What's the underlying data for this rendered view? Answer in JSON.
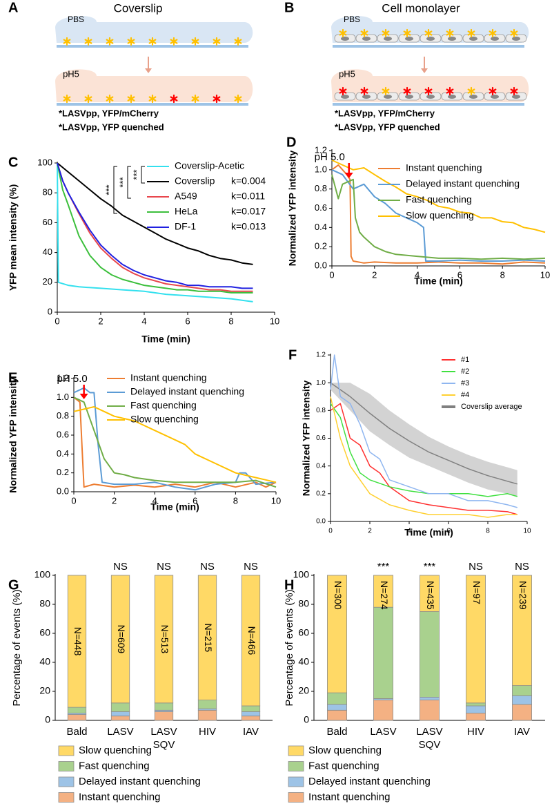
{
  "panel_a": {
    "label": "A",
    "title": "Coverslip",
    "buffer_top": "PBS",
    "buffer_bottom": "pH5",
    "legend": [
      "*LASVpp, YFP/mCherry",
      "*LASVpp, YFP quenched"
    ]
  },
  "panel_b": {
    "label": "B",
    "title": "Cell monolayer",
    "buffer_top": "PBS",
    "buffer_bottom": "pH5",
    "legend": [
      "*LASVpp, YFP/mCherry",
      "*LASVpp, YFP quenched"
    ]
  },
  "chart_data": [
    {
      "type": "line",
      "panel_label": "C",
      "xlabel": "Time (min)",
      "ylabel": "YFP mean intensity (%)",
      "xlim": [
        0,
        10
      ],
      "xticks": [
        0,
        2,
        4,
        6,
        8,
        10
      ],
      "ylim": [
        0,
        100
      ],
      "yticks": [
        0,
        20,
        40,
        60,
        80,
        100
      ],
      "significance": [
        "***",
        "***",
        "***"
      ],
      "series": [
        {
          "name": "Coverslip-Acetic",
          "color": "#33e0ee",
          "x": [
            0,
            0.05,
            0.5,
            1,
            2,
            3,
            4,
            5,
            6,
            7,
            8,
            9
          ],
          "values": [
            100,
            20,
            18,
            17,
            16,
            15,
            14,
            12,
            11,
            10,
            9,
            7
          ]
        },
        {
          "name": "Coverslip",
          "annotation": "k=0.004",
          "color": "#000000",
          "x": [
            0,
            0.25,
            0.5,
            1,
            1.5,
            2,
            2.5,
            3,
            3.5,
            4,
            4.5,
            5,
            5.5,
            6,
            6.5,
            7,
            7.5,
            8,
            8.5,
            9
          ],
          "values": [
            100,
            97,
            94,
            88,
            82,
            76,
            71,
            65,
            61,
            57,
            53,
            49,
            46,
            43,
            41,
            38,
            36,
            35,
            33,
            32
          ]
        },
        {
          "name": "A549",
          "annotation": "k=0.011",
          "color": "#e8474d",
          "x": [
            0,
            0.25,
            0.5,
            1,
            1.5,
            2,
            2.5,
            3,
            3.5,
            4,
            4.5,
            5,
            5.5,
            6,
            6.5,
            7,
            7.5,
            8,
            8.5,
            9
          ],
          "values": [
            100,
            88,
            80,
            66,
            53,
            43,
            36,
            30,
            26,
            23,
            21,
            19,
            18,
            17,
            16,
            15,
            15,
            14,
            14,
            14
          ]
        },
        {
          "name": "HeLa",
          "annotation": "k=0.017",
          "color": "#3cbf3c",
          "x": [
            0,
            0.25,
            0.5,
            1,
            1.5,
            2,
            2.5,
            3,
            3.5,
            4,
            4.5,
            5,
            5.5,
            6,
            6.5,
            7,
            7.5,
            8,
            8.5,
            9
          ],
          "values": [
            100,
            82,
            72,
            51,
            38,
            30,
            25,
            22,
            20,
            18,
            17,
            16,
            15,
            15,
            14,
            14,
            14,
            13,
            13,
            13
          ]
        },
        {
          "name": "DF-1",
          "annotation": "k=0.013",
          "color": "#2020e0",
          "x": [
            0,
            0.25,
            0.5,
            1,
            1.5,
            2,
            2.5,
            3,
            3.5,
            4,
            4.5,
            5,
            5.5,
            6,
            6.5,
            7,
            7.5,
            8,
            8.5,
            9
          ],
          "values": [
            100,
            88,
            80,
            67,
            55,
            45,
            38,
            32,
            28,
            25,
            23,
            21,
            20,
            18,
            18,
            17,
            17,
            17,
            16,
            16
          ]
        }
      ]
    },
    {
      "type": "line",
      "panel_label": "D",
      "xlabel": "Time (min)",
      "ylabel": "Normalized YFP intensity",
      "annotation": "pH 5.0",
      "annotation_x": 0.8,
      "xlim": [
        0,
        10
      ],
      "xticks": [
        0,
        2,
        4,
        6,
        8,
        10
      ],
      "ylim": [
        0,
        1.2
      ],
      "yticks": [
        {
          "value": 0,
          "label": "0.0"
        },
        0.2,
        0.4,
        0.6,
        0.8,
        {
          "value": 1,
          "label": "1.0"
        },
        1.2
      ],
      "series": [
        {
          "name": "Instant quenching",
          "color": "#ed7d31",
          "x": [
            0,
            0.3,
            0.5,
            0.7,
            0.85,
            0.9,
            1,
            1.5,
            2,
            3,
            4,
            5,
            6,
            7,
            8,
            9,
            10
          ],
          "values": [
            1.0,
            1.05,
            1.0,
            0.95,
            0.9,
            0.1,
            0.05,
            0.03,
            0.04,
            0.03,
            0.03,
            0.04,
            0.03,
            0.03,
            0.02,
            0.04,
            0.03
          ]
        },
        {
          "name": "Delayed instant quenching",
          "color": "#5b9bd5",
          "x": [
            0,
            0.5,
            1,
            1.5,
            2,
            2.5,
            3,
            3.5,
            4,
            4.3,
            4.4,
            5,
            6,
            7,
            8,
            9,
            10
          ],
          "values": [
            1.0,
            0.95,
            0.8,
            0.85,
            0.72,
            0.65,
            0.55,
            0.5,
            0.45,
            0.4,
            0.05,
            0.05,
            0.06,
            0.05,
            0.05,
            0.06,
            0.05
          ]
        },
        {
          "name": "Fast quenching",
          "color": "#70ad47",
          "x": [
            0,
            0.3,
            0.5,
            1,
            1.1,
            1.3,
            1.5,
            2,
            2.5,
            3,
            4,
            5,
            6,
            7,
            8,
            9,
            10
          ],
          "values": [
            0.95,
            0.7,
            0.85,
            0.9,
            0.5,
            0.35,
            0.3,
            0.2,
            0.15,
            0.12,
            0.1,
            0.08,
            0.08,
            0.07,
            0.08,
            0.07,
            0.08
          ]
        },
        {
          "name": "Slow quenching",
          "color": "#ffc000",
          "x": [
            0,
            0.5,
            1,
            1.5,
            2,
            2.5,
            3,
            3.5,
            4,
            4.5,
            5,
            5.5,
            6,
            6.5,
            7,
            7.5,
            8,
            8.5,
            9,
            9.5,
            10
          ],
          "values": [
            1.1,
            1.05,
            1.0,
            1.02,
            0.95,
            0.88,
            0.82,
            0.75,
            0.72,
            0.68,
            0.62,
            0.6,
            0.56,
            0.55,
            0.5,
            0.5,
            0.46,
            0.45,
            0.4,
            0.38,
            0.35
          ]
        }
      ]
    },
    {
      "type": "line",
      "panel_label": "E",
      "xlabel": "Time (min)",
      "ylabel": "Normalized YFP intensity",
      "annotation": "pH 5.0",
      "annotation_x": 0.5,
      "xlim": [
        0,
        10
      ],
      "xticks": [
        0,
        2,
        4,
        6,
        8,
        10
      ],
      "ylim": [
        0,
        1.2
      ],
      "yticks": [
        {
          "value": 0,
          "label": "0.0"
        },
        0.2,
        0.4,
        0.6,
        0.8,
        {
          "value": 1,
          "label": "1.0"
        },
        1.2
      ],
      "series": [
        {
          "name": "Instant quenching",
          "color": "#ed7d31",
          "x": [
            0,
            0.3,
            0.4,
            0.5,
            1,
            2,
            3,
            4,
            5,
            6,
            7,
            8,
            9,
            9.5,
            10
          ],
          "values": [
            1.0,
            0.95,
            0.5,
            0.05,
            0.08,
            0.05,
            0.07,
            0.05,
            0.08,
            0.05,
            0.1,
            0.05,
            0.1,
            0.05,
            0.1
          ]
        },
        {
          "name": "Delayed instant quenching",
          "color": "#5b9bd5",
          "x": [
            0,
            0.5,
            0.8,
            1,
            1.2,
            1.4,
            2,
            3,
            4,
            5,
            6,
            7,
            8,
            8.2,
            8.5,
            9,
            10
          ],
          "values": [
            1.05,
            1.1,
            1.05,
            1.05,
            0.5,
            0.1,
            0.08,
            0.08,
            0.1,
            0.05,
            0.02,
            0.08,
            0.1,
            0.2,
            0.2,
            0.08,
            0.1
          ]
        },
        {
          "name": "Fast quenching",
          "color": "#70ad47",
          "x": [
            0,
            0.5,
            1,
            1.5,
            2,
            2.5,
            3,
            4,
            5,
            6,
            7,
            8,
            9,
            10
          ],
          "values": [
            1.0,
            0.95,
            0.65,
            0.35,
            0.2,
            0.18,
            0.15,
            0.12,
            0.1,
            0.1,
            0.1,
            0.1,
            0.12,
            0.05
          ]
        },
        {
          "name": "Slow quenching",
          "color": "#ffc000",
          "x": [
            0,
            1,
            1.5,
            2,
            3,
            4,
            5,
            5.5,
            6,
            7,
            8,
            9,
            10
          ],
          "values": [
            0.85,
            0.9,
            0.85,
            0.8,
            0.75,
            0.65,
            0.55,
            0.5,
            0.4,
            0.3,
            0.2,
            0.15,
            0.1
          ]
        }
      ]
    },
    {
      "type": "line",
      "panel_label": "F",
      "xlabel": "Time (min)",
      "ylabel": "Normalized YFP intensity",
      "xlim": [
        0,
        10
      ],
      "xticks": [
        0,
        2,
        4,
        6,
        8,
        10
      ],
      "ylim": [
        0,
        1.2
      ],
      "yticks": [
        {
          "value": 0,
          "label": "0.0"
        },
        0.2,
        0.4,
        0.6,
        0.8,
        {
          "value": 1,
          "label": "1.0"
        },
        1.2
      ],
      "series": [
        {
          "name": "#1",
          "color": "#ff3030",
          "x": [
            0,
            0.5,
            1,
            1.5,
            2,
            2.5,
            3,
            4,
            5,
            6,
            7,
            8,
            9,
            9.5
          ],
          "values": [
            0.8,
            0.85,
            0.6,
            0.55,
            0.4,
            0.35,
            0.25,
            0.15,
            0.12,
            0.1,
            0.08,
            0.08,
            0.07,
            0.05
          ]
        },
        {
          "name": "#2",
          "color": "#40e040",
          "x": [
            0,
            0.5,
            1,
            1.5,
            2,
            3,
            4,
            5,
            6,
            7,
            8,
            9,
            9.5
          ],
          "values": [
            0.85,
            0.75,
            0.5,
            0.35,
            0.3,
            0.25,
            0.22,
            0.2,
            0.2,
            0.2,
            0.18,
            0.2,
            0.18
          ]
        },
        {
          "name": "#3",
          "color": "#8fb6f0",
          "x": [
            0,
            0.2,
            0.5,
            1,
            1.5,
            2,
            2.5,
            3,
            4,
            5,
            6,
            7,
            8,
            9,
            9.5
          ],
          "values": [
            0.95,
            1.2,
            0.9,
            0.85,
            0.7,
            0.5,
            0.45,
            0.3,
            0.25,
            0.2,
            0.2,
            0.15,
            0.15,
            0.12,
            0.1
          ]
        },
        {
          "name": "#4",
          "color": "#ffd030",
          "x": [
            0,
            0.5,
            1,
            1.5,
            2,
            3,
            4,
            5,
            6,
            7,
            8,
            9,
            9.5
          ],
          "values": [
            0.9,
            0.6,
            0.4,
            0.3,
            0.2,
            0.12,
            0.08,
            0.05,
            0.05,
            0.05,
            0.03,
            0.05,
            0.05
          ]
        },
        {
          "name": "Coverslip average",
          "color": "#808080",
          "band_color": "#c8c8c8",
          "x": [
            0,
            1,
            2,
            3,
            4,
            5,
            6,
            7,
            8,
            9,
            9.5
          ],
          "values": [
            1.0,
            0.9,
            0.78,
            0.67,
            0.58,
            0.5,
            0.44,
            0.38,
            0.33,
            0.29,
            0.27
          ],
          "lower": [
            0.95,
            0.8,
            0.65,
            0.55,
            0.46,
            0.4,
            0.34,
            0.28,
            0.23,
            0.2,
            0.18
          ],
          "upper": [
            1.0,
            1.0,
            0.92,
            0.8,
            0.7,
            0.61,
            0.54,
            0.48,
            0.43,
            0.39,
            0.37
          ]
        }
      ]
    },
    {
      "type": "bar",
      "panel_label": "G",
      "ylabel": "Percentage of events (%)",
      "categories": [
        "Bald",
        "LASV",
        "LASV",
        "HIV",
        "IAV"
      ],
      "sublabels": [
        null,
        null,
        "SQV",
        null,
        null
      ],
      "significance": [
        null,
        "NS",
        "NS",
        "NS",
        "NS"
      ],
      "n_labels": [
        "N=448",
        "N=609",
        "N=513",
        "N=215",
        "N=466"
      ],
      "ylim": [
        0,
        100
      ],
      "yticks": [
        0,
        20,
        40,
        60,
        80,
        100
      ],
      "series": [
        {
          "name": "Instant quenching",
          "color": "#f4b183",
          "values": [
            4,
            3,
            6,
            7,
            3
          ]
        },
        {
          "name": "Delayed instant quenching",
          "color": "#9dc3e6",
          "values": [
            1,
            3,
            1,
            1,
            3
          ]
        },
        {
          "name": "Fast quenching",
          "color": "#a9d18e",
          "values": [
            4,
            6,
            5,
            6,
            4
          ]
        },
        {
          "name": "Slow quenching",
          "color": "#ffd966",
          "values": [
            91,
            88,
            88,
            86,
            90
          ]
        }
      ]
    },
    {
      "type": "bar",
      "panel_label": "H",
      "ylabel": "Percentage of events (%)",
      "categories": [
        "Bald",
        "LASV",
        "LASV",
        "HIV",
        "IAV"
      ],
      "sublabels": [
        null,
        null,
        "SQV",
        null,
        null
      ],
      "significance": [
        null,
        "***",
        "***",
        "NS",
        "NS"
      ],
      "n_labels": [
        "N=300",
        "N=274",
        "N=435",
        "N=97",
        "N=239"
      ],
      "ylim": [
        0,
        100
      ],
      "yticks": [
        0,
        20,
        40,
        60,
        80,
        100
      ],
      "series": [
        {
          "name": "Instant quenching",
          "color": "#f4b183",
          "values": [
            7,
            14,
            14,
            5,
            11
          ]
        },
        {
          "name": "Delayed instant quenching",
          "color": "#9dc3e6",
          "values": [
            4,
            1,
            2,
            5,
            6
          ]
        },
        {
          "name": "Fast quenching",
          "color": "#a9d18e",
          "values": [
            8,
            63,
            59,
            2,
            7
          ]
        },
        {
          "name": "Slow quenching",
          "color": "#ffd966",
          "values": [
            81,
            22,
            25,
            88,
            76
          ]
        }
      ]
    }
  ]
}
